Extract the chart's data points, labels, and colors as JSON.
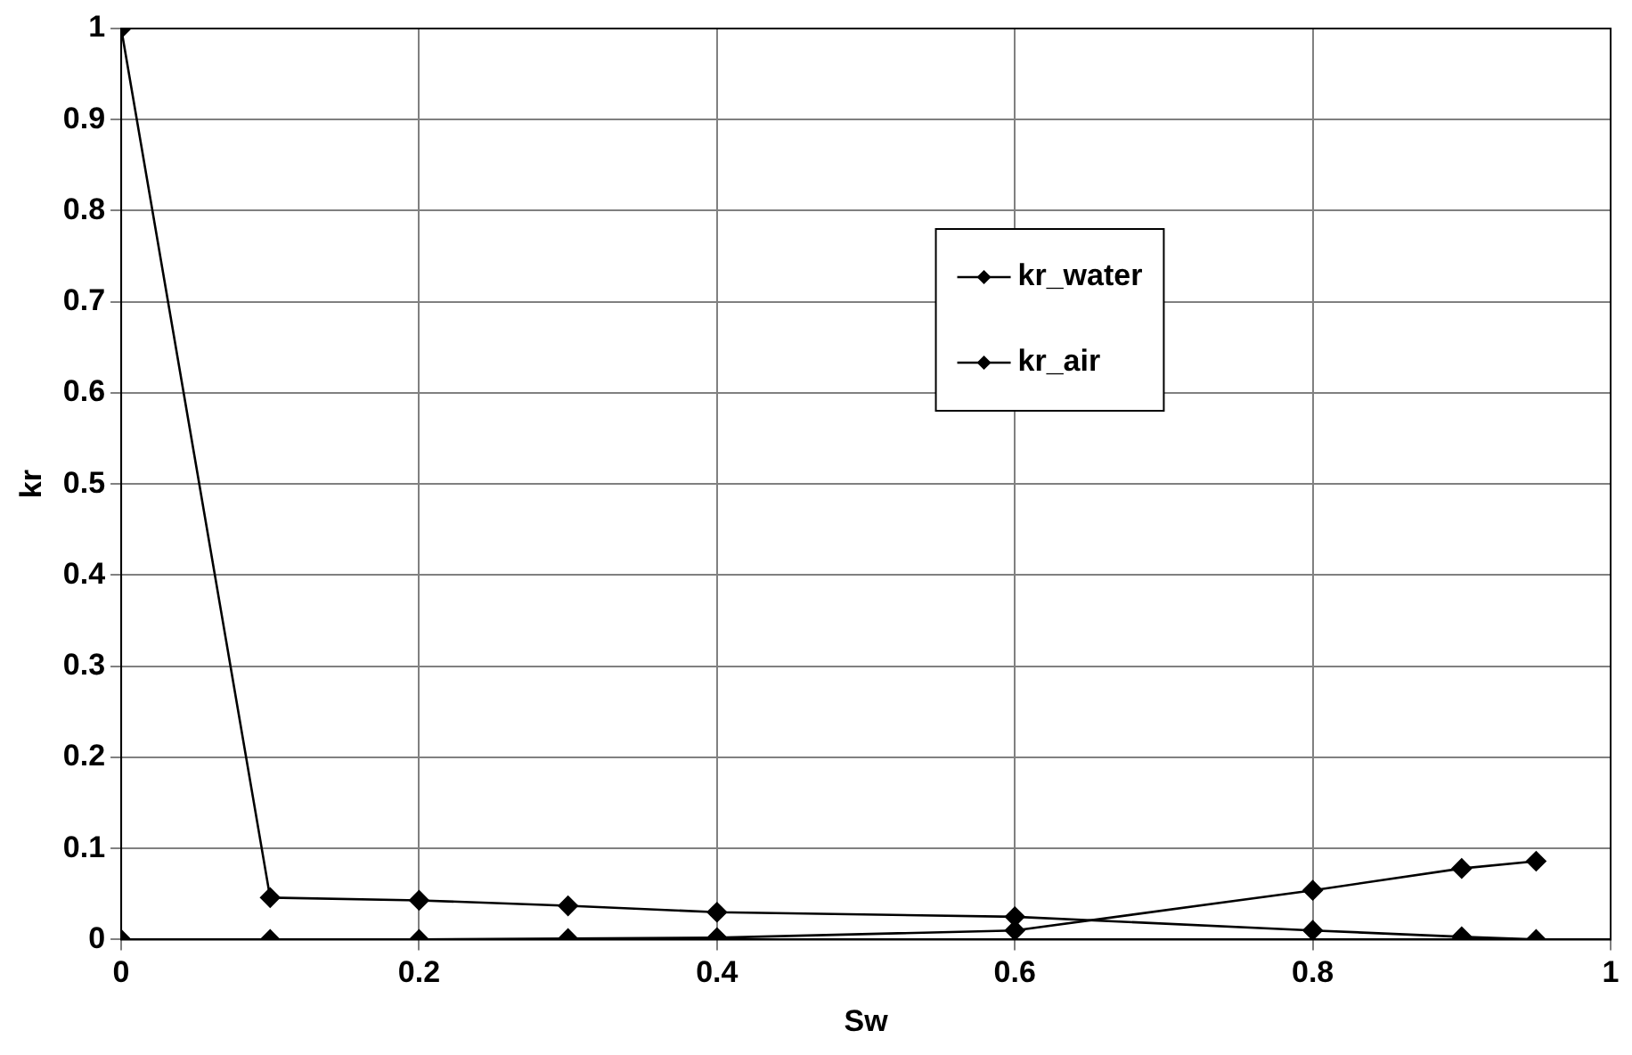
{
  "chart_data": {
    "type": "line",
    "xlabel": "Sw",
    "ylabel": "kr",
    "xlim": [
      0,
      1
    ],
    "xticks": [
      0,
      0.2,
      0.4,
      0.6,
      0.8,
      1
    ],
    "ylim": [
      0,
      1
    ],
    "yticks": [
      0,
      0.1,
      0.2,
      0.3,
      0.4,
      0.5,
      0.6,
      0.7,
      0.8,
      0.9,
      1
    ],
    "x": [
      0,
      0.1,
      0.2,
      0.3,
      0.4,
      0.6,
      0.8,
      0.9,
      0.95
    ],
    "series": [
      {
        "name": "kr_water",
        "color": "#000000",
        "values": [
          0,
          0,
          0,
          0.001,
          0.002,
          0.01,
          0.054,
          0.078,
          0.086
        ]
      },
      {
        "name": "kr_air",
        "color": "#000000",
        "values": [
          1,
          0.046,
          0.043,
          0.037,
          0.03,
          0.025,
          0.01,
          0.003,
          0
        ]
      }
    ],
    "grid": true,
    "legend": "top right",
    "marker": "diamond",
    "line_style": "solid"
  }
}
